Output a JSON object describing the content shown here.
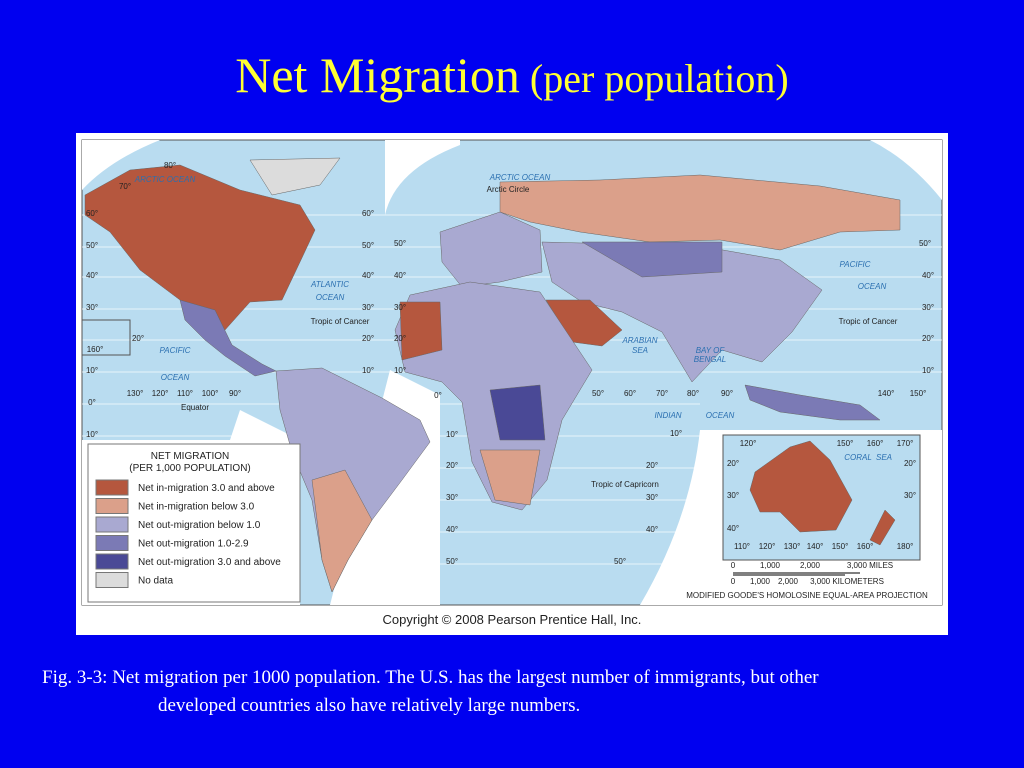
{
  "title": {
    "main": "Net Migration",
    "sub": "(per population)"
  },
  "map": {
    "labels": [
      "80°",
      "70°",
      "60°",
      "50°",
      "40°",
      "30°",
      "20°",
      "10°",
      "0°",
      "10°",
      "60°",
      "50°",
      "40°",
      "30°",
      "20°",
      "10°",
      "ARCTIC OCEAN",
      "ATLANTIC",
      "OCEAN",
      "Tropic of Cancer",
      "PACIFIC",
      "OCEAN",
      "160°",
      "Equator",
      "130°",
      "120°",
      "110°",
      "100°",
      "90°",
      "ARCTIC OCEAN",
      "Arctic Circle",
      "50°",
      "40°",
      "30°",
      "20°",
      "10°",
      "0°",
      "10°",
      "20°",
      "30°",
      "40°",
      "50°",
      "50°",
      "40°",
      "30°",
      "20°",
      "10°",
      "PACIFIC",
      "OCEAN",
      "Tropic of Cancer",
      "ARABIAN",
      "SEA",
      "BAY OF",
      "BENGAL",
      "50°",
      "60°",
      "70°",
      "80°",
      "90°",
      "140°",
      "150°",
      "INDIAN",
      "OCEAN",
      "10°",
      "20°",
      "30°",
      "40°",
      "50°",
      "Tropic of Capricorn"
    ],
    "inset_labels": [
      "120°",
      "150°",
      "160°",
      "170°",
      "20°",
      "20°",
      "30°",
      "30°",
      "40°",
      "CORAL",
      "SEA",
      "110°",
      "120°",
      "130°",
      "140°",
      "150°",
      "160°",
      "180°"
    ],
    "scale": {
      "miles": [
        "0",
        "1,000",
        "2,000",
        "3,000 MILES"
      ],
      "km": [
        "0",
        "1,000",
        "2,000",
        "3,000 KILOMETERS"
      ]
    },
    "projection": "MODIFIED GOODE'S HOMOLOSINE EQUAL-AREA PROJECTION",
    "copyright": "Copyright © 2008 Pearson Prentice Hall, Inc."
  },
  "legend": {
    "title": [
      "NET MIGRATION",
      "(PER 1,000 POPULATION)"
    ],
    "items": [
      {
        "label": "Net in-migration 3.0 and above",
        "color": "#b5573e"
      },
      {
        "label": "Net in-migration below 3.0",
        "color": "#dba08a"
      },
      {
        "label": "Net out-migration below 1.0",
        "color": "#a9a9d1"
      },
      {
        "label": "Net out-migration 1.0-2.9",
        "color": "#7b7ab5"
      },
      {
        "label": "Net out-migration 3.0 and above",
        "color": "#4a4996"
      },
      {
        "label": "No data",
        "color": "#dcdcdc"
      }
    ]
  },
  "caption": [
    "Fig. 3-3: Net migration per 1000 population.  The U.S. has the largest number of immigrants, but other",
    "developed countries also have relatively large numbers."
  ]
}
